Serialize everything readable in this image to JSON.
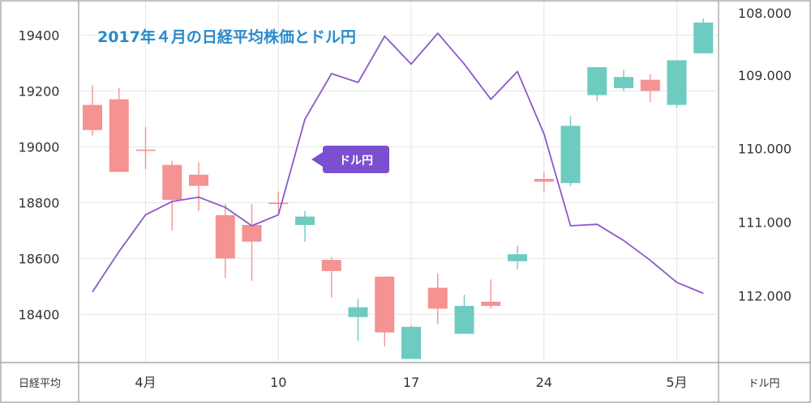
{
  "chart_data": {
    "type": "candlestick",
    "title": "2017年４月の日経平均株価とドル円",
    "colors": {
      "up": "#6ecbc0",
      "down": "#f59292",
      "line": "#8a59c9",
      "title": "#2a8bc9",
      "callout": "#7b4fd0",
      "frame": "#999999",
      "grid": "#e6e6e6"
    },
    "left_axis": {
      "label": "日経平均",
      "ylim": [
        18230,
        19520
      ],
      "ticks": [
        18400,
        18600,
        18800,
        19000,
        19200,
        19400
      ],
      "tick_labels": [
        "18400",
        "18600",
        "18800",
        "19000",
        "19200",
        "19400"
      ]
    },
    "right_axis": {
      "label": "ドル円",
      "ylim": [
        108.0,
        112.9
      ],
      "inverted": true,
      "ticks": [
        108.0,
        109.0,
        110.0,
        111.0,
        112.0
      ],
      "tick_labels": [
        "108.000",
        "109.000",
        "110.000",
        "111.000",
        "112.000"
      ]
    },
    "x_axis": {
      "ticks": [
        {
          "index": 2,
          "label": "4月"
        },
        {
          "index": 7,
          "label": "10"
        },
        {
          "index": 12,
          "label": "17"
        },
        {
          "index": 17,
          "label": "24"
        },
        {
          "index": 22,
          "label": "5月"
        }
      ]
    },
    "candles": [
      {
        "open": 19150,
        "close": 19060,
        "high": 19220,
        "low": 19040
      },
      {
        "open": 19170,
        "close": 18910,
        "high": 19210,
        "low": 18910
      },
      {
        "open": 18990,
        "close": 18985,
        "high": 19070,
        "low": 18920
      },
      {
        "open": 18935,
        "close": 18810,
        "high": 18950,
        "low": 18700
      },
      {
        "open": 18900,
        "close": 18860,
        "high": 18945,
        "low": 18770
      },
      {
        "open": 18755,
        "close": 18600,
        "high": 18795,
        "low": 18530
      },
      {
        "open": 18720,
        "close": 18660,
        "high": 18795,
        "low": 18520
      },
      {
        "open": 18800,
        "close": 18795,
        "high": 18840,
        "low": 18760
      },
      {
        "open": 18720,
        "close": 18750,
        "high": 18770,
        "low": 18660
      },
      {
        "open": 18595,
        "close": 18555,
        "high": 18605,
        "low": 18460
      },
      {
        "open": 18390,
        "close": 18425,
        "high": 18455,
        "low": 18305
      },
      {
        "open": 18535,
        "close": 18335,
        "high": 18535,
        "low": 18285
      },
      {
        "open": 18240,
        "close": 18355,
        "high": 18360,
        "low": 18240
      },
      {
        "open": 18495,
        "close": 18420,
        "high": 18545,
        "low": 18365
      },
      {
        "open": 18330,
        "close": 18430,
        "high": 18470,
        "low": 18330
      },
      {
        "open": 18445,
        "close": 18430,
        "high": 18525,
        "low": 18420
      },
      {
        "open": 18590,
        "close": 18615,
        "high": 18645,
        "low": 18560
      },
      {
        "open": 18885,
        "close": 18875,
        "high": 18910,
        "low": 18840
      },
      {
        "open": 18870,
        "close": 19075,
        "high": 19110,
        "low": 18860
      },
      {
        "open": 19185,
        "close": 19285,
        "high": 19285,
        "low": 19165
      },
      {
        "open": 19210,
        "close": 19250,
        "high": 19275,
        "low": 19200
      },
      {
        "open": 19240,
        "close": 19200,
        "high": 19260,
        "low": 19160
      },
      {
        "open": 19150,
        "close": 19310,
        "high": 19310,
        "low": 19140
      },
      {
        "open": 19335,
        "close": 19445,
        "high": 19460,
        "low": 19335
      }
    ],
    "usdjpy_series": {
      "name": "ドル円",
      "values": [
        111.95,
        111.4,
        110.9,
        110.72,
        110.66,
        110.8,
        111.05,
        110.9,
        109.6,
        108.98,
        109.1,
        108.47,
        108.85,
        108.43,
        108.85,
        109.33,
        108.95,
        109.8,
        111.05,
        111.03,
        111.25,
        111.52,
        111.82,
        111.97
      ]
    }
  }
}
